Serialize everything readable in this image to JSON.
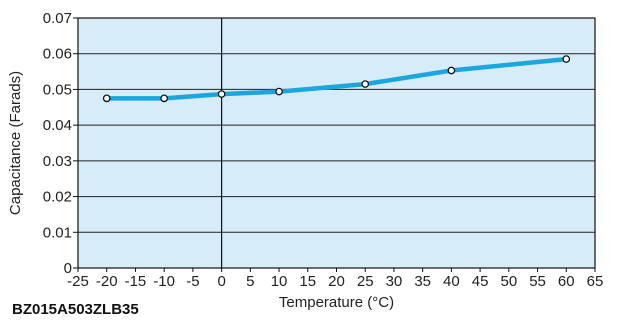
{
  "chart_data": {
    "type": "line",
    "title": "",
    "xlabel": "Temperature (°C)",
    "ylabel": "Capacitance (Farads)",
    "xlim": [
      -25,
      65
    ],
    "ylim": [
      0,
      0.07
    ],
    "x_ticks": [
      "-25",
      "-20",
      "-15",
      "-10",
      "-5",
      "0",
      "5",
      "10",
      "15",
      "20",
      "25",
      "30",
      "35",
      "40",
      "45",
      "50",
      "55",
      "60",
      "65"
    ],
    "y_ticks": [
      "0",
      "0.01",
      "0.02",
      "0.03",
      "0.04",
      "0.05",
      "0.06",
      "0.07"
    ],
    "grid": "horizontal",
    "series": [
      {
        "x": [
          -20,
          -10,
          0,
          10,
          25,
          40,
          60
        ],
        "y": [
          0.0475,
          0.0475,
          0.0487,
          0.0494,
          0.0515,
          0.0553,
          0.0585
        ]
      }
    ],
    "colors": {
      "plot_background": "#d6ecf8",
      "line": "#1aa6df",
      "marker_fill": "#ffffff",
      "marker_stroke": "#111111",
      "grid": "#222222"
    }
  },
  "part_number": "BZ015A503ZLB35"
}
